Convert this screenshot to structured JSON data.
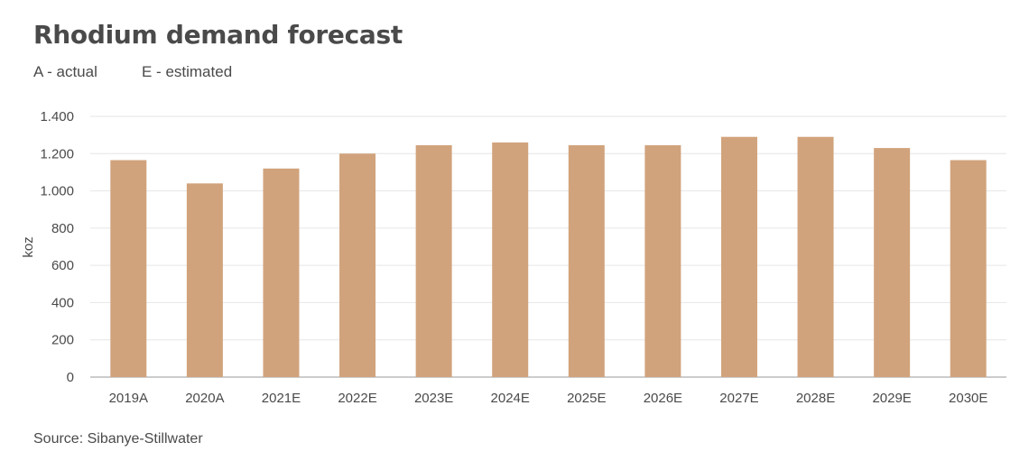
{
  "title": "Rhodium demand forecast",
  "notes": {
    "actual": "A - actual",
    "estimated": "E - estimated"
  },
  "source": "Source: Sibanye-Stillwater",
  "colors": {
    "bar": "#d1a37c",
    "grid": "#e6e6e6",
    "axis": "#9a9a9a"
  },
  "chart_data": {
    "type": "bar",
    "title": "Rhodium demand forecast",
    "xlabel": "",
    "ylabel": "koz",
    "categories": [
      "2019A",
      "2020A",
      "2021E",
      "2022E",
      "2023E",
      "2024E",
      "2025E",
      "2026E",
      "2027E",
      "2028E",
      "2029E",
      "2030E"
    ],
    "values": [
      1165,
      1040,
      1120,
      1200,
      1245,
      1260,
      1245,
      1245,
      1290,
      1290,
      1230,
      1165
    ],
    "ylim": [
      0,
      1400
    ],
    "yticks": [
      0,
      200,
      400,
      600,
      800,
      1000,
      1200,
      1400
    ],
    "ytick_labels": [
      "0",
      "200",
      "400",
      "600",
      "800",
      "1.000",
      "1.200",
      "1.400"
    ],
    "grid": true,
    "legend": "none"
  }
}
